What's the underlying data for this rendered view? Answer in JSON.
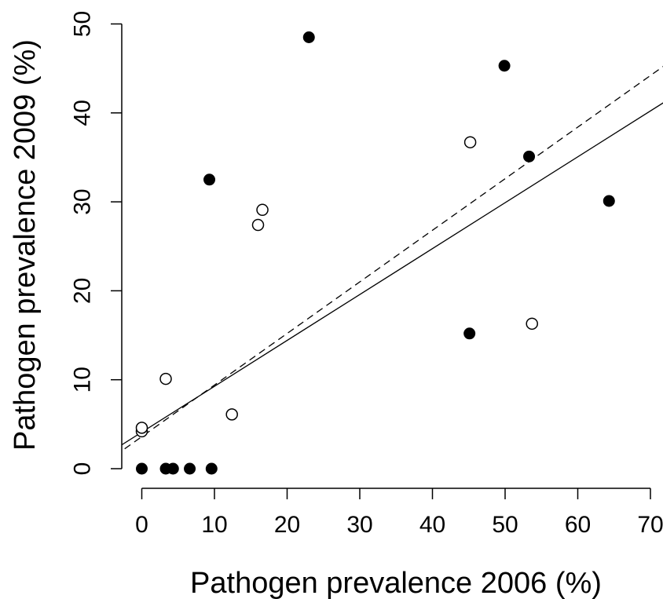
{
  "chart_data": {
    "type": "scatter",
    "xlabel": "Pathogen prevalence 2006 (%)",
    "ylabel": "Pathogen prevalence 2009 (%)",
    "xlim": [
      -2.5,
      72
    ],
    "ylim": [
      -2,
      50
    ],
    "x_ticks": [
      "0",
      "10",
      "20",
      "30",
      "40",
      "50",
      "60",
      "70"
    ],
    "y_ticks": [
      "0",
      "10",
      "20",
      "30",
      "40",
      "50"
    ],
    "grid": false,
    "series": [
      {
        "marker": "filled-circle",
        "color": "#000000",
        "points": [
          {
            "x": 0,
            "y": 0
          },
          {
            "x": 3.3,
            "y": 0
          },
          {
            "x": 4.3,
            "y": 0
          },
          {
            "x": 6.6,
            "y": 0
          },
          {
            "x": 9.6,
            "y": 0
          },
          {
            "x": 9.3,
            "y": 32.5
          },
          {
            "x": 23,
            "y": 48.5
          },
          {
            "x": 45.1,
            "y": 15.2
          },
          {
            "x": 49.9,
            "y": 45.3
          },
          {
            "x": 53.3,
            "y": 35.1
          },
          {
            "x": 64.3,
            "y": 30.1
          }
        ]
      },
      {
        "marker": "open-circle",
        "color": "#000000",
        "points": [
          {
            "x": 0,
            "y": 4.2
          },
          {
            "x": 0,
            "y": 4.6
          },
          {
            "x": 3.3,
            "y": 10.1
          },
          {
            "x": 12.4,
            "y": 6.1
          },
          {
            "x": 16,
            "y": 27.4
          },
          {
            "x": 16.6,
            "y": 29.1
          },
          {
            "x": 45.2,
            "y": 36.7
          },
          {
            "x": 53.7,
            "y": 16.3
          }
        ]
      }
    ],
    "fit_lines": [
      {
        "style": "solid",
        "intercept": 4.1,
        "slope": 0.516
      },
      {
        "style": "dashed",
        "intercept": 3.6,
        "slope": 0.58
      }
    ]
  }
}
